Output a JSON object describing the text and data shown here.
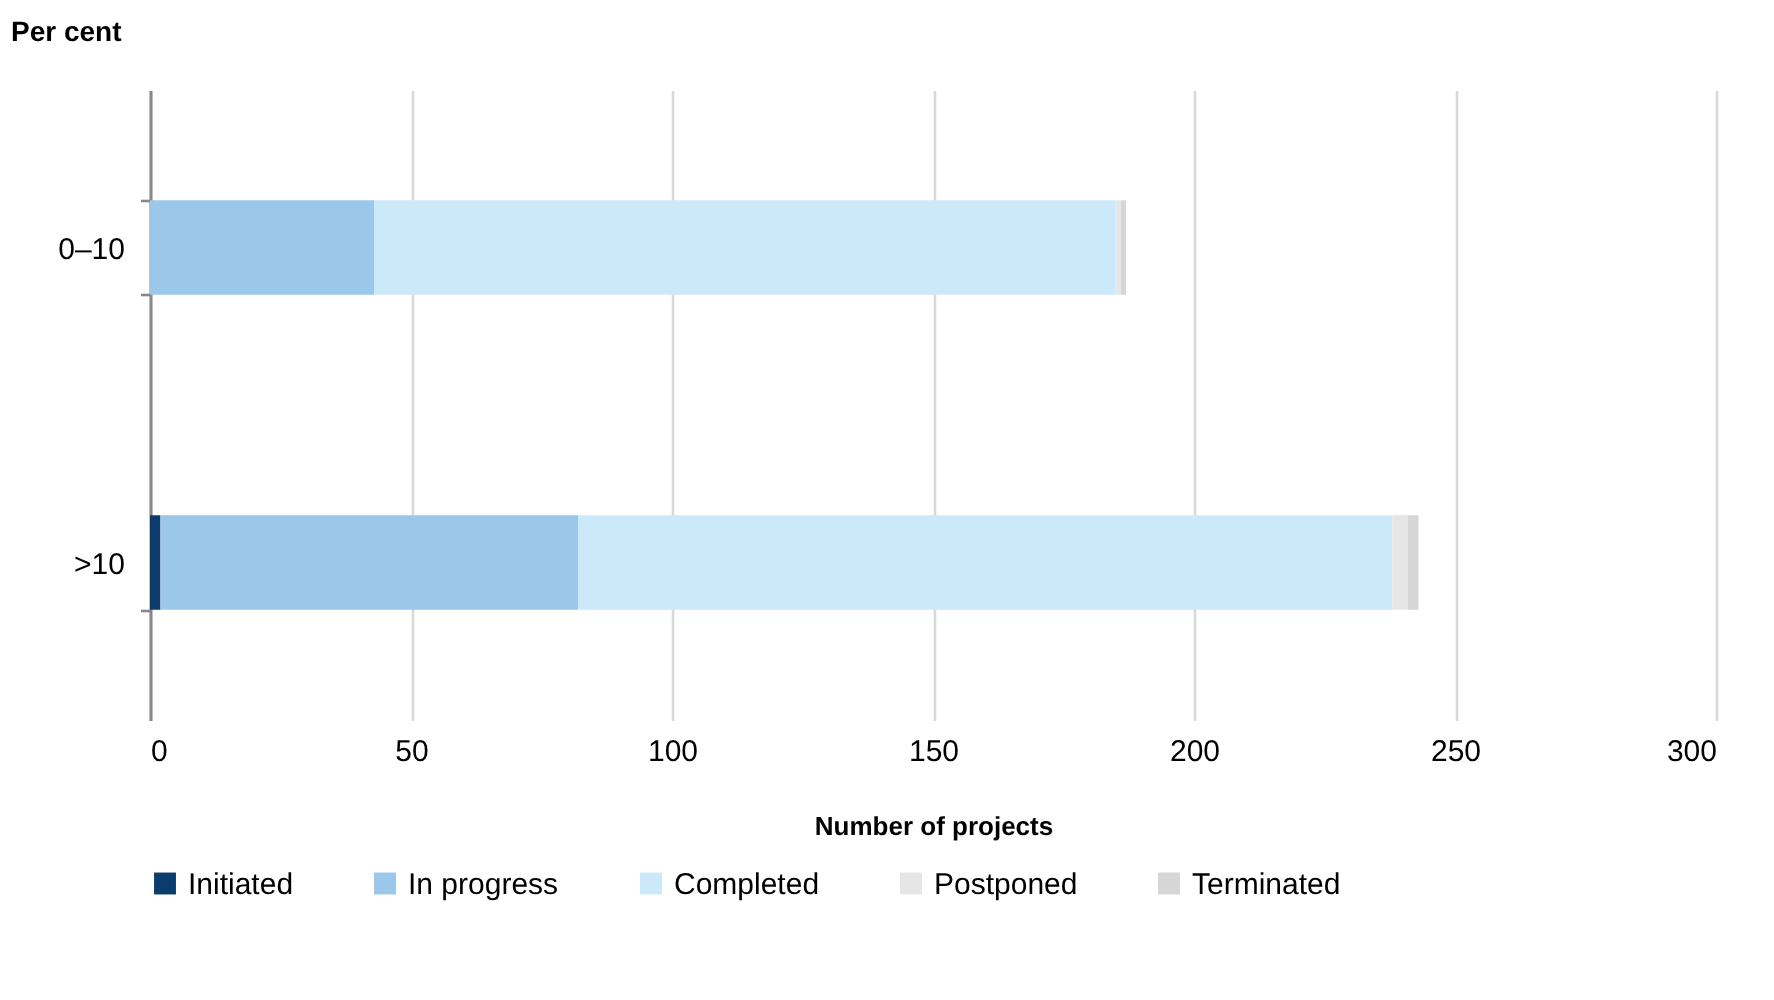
{
  "chart_data": {
    "type": "bar",
    "orientation": "horizontal",
    "stacked": true,
    "ylabel": "Per cent",
    "xlabel": "Number of projects",
    "categories": [
      "0–10",
      ">10"
    ],
    "series": [
      {
        "name": "Initiated",
        "color": "#0b3c6b",
        "values": [
          0,
          2
        ]
      },
      {
        "name": "In progress",
        "color": "#9bc7ea",
        "values": [
          43,
          80
        ]
      },
      {
        "name": "Completed",
        "color": "#cce9f9",
        "values": [
          142,
          156
        ]
      },
      {
        "name": "Postponed",
        "color": "#e6e6e6",
        "values": [
          1,
          3
        ]
      },
      {
        "name": "Terminated",
        "color": "#d6d6d6",
        "values": [
          1,
          2
        ]
      }
    ],
    "xlim": [
      0,
      300
    ],
    "xticks": [
      0,
      50,
      100,
      150,
      200,
      250,
      300
    ],
    "grid": "x",
    "legend": "bottom"
  }
}
